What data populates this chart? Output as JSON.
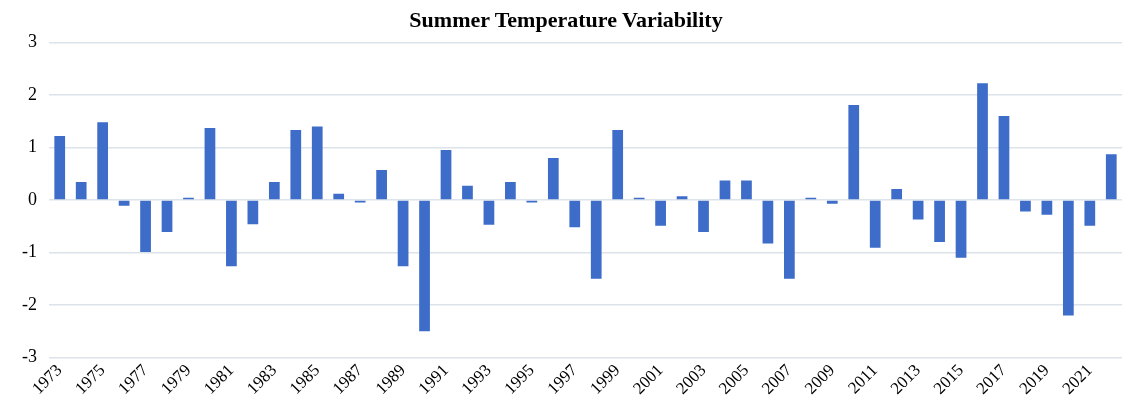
{
  "chart_data": {
    "type": "bar",
    "title": "Summer Temperature Variability",
    "categories": [
      "1973",
      null,
      "1975",
      null,
      "1977",
      null,
      "1979",
      null,
      "1981",
      null,
      "1983",
      null,
      "1985",
      null,
      "1987",
      null,
      "1989",
      null,
      "1991",
      null,
      "1993",
      null,
      "1995",
      null,
      "1997",
      null,
      "1999",
      null,
      "2001",
      null,
      "2003",
      null,
      "2005",
      null,
      "2007",
      null,
      "2009",
      null,
      "2011",
      null,
      "2013",
      null,
      "2015",
      null,
      "2017",
      null,
      "2019",
      null,
      "2021",
      null
    ],
    "values": [
      1.22,
      0.34,
      1.48,
      -0.11,
      -0.99,
      -0.61,
      0.04,
      1.37,
      -1.26,
      -0.46,
      0.34,
      1.33,
      1.4,
      0.12,
      -0.05,
      0.57,
      -1.26,
      -2.5,
      0.95,
      0.27,
      -0.47,
      0.34,
      -0.05,
      0.8,
      -0.52,
      -1.5,
      1.33,
      0.04,
      -0.49,
      0.07,
      -0.61,
      0.37,
      0.37,
      -0.83,
      -1.5,
      0.04,
      -0.07,
      1.81,
      -0.91,
      0.21,
      -0.37,
      -0.8,
      -1.1,
      2.22,
      1.6,
      -0.22,
      -0.28,
      -2.2,
      -0.49,
      0.87
    ],
    "color": "#3d6cc9",
    "ylim": [
      -3,
      3
    ],
    "yticks": [
      -3,
      -2,
      -1,
      0,
      1,
      2,
      3
    ],
    "grid": "y",
    "legend": false
  }
}
